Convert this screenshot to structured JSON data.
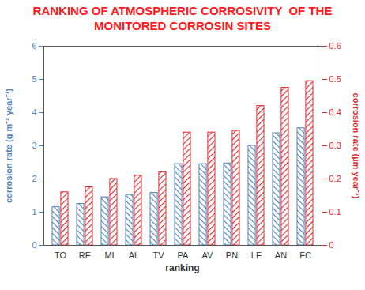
{
  "chart_data": {
    "type": "bar",
    "title": "RANKING OF ATMOSPHERIC CORROSIVITY  OF THE MONITORED CORROSIN SITES",
    "xlabel": "ranking",
    "ylabel": "corrosion rate (g m⁻² year⁻¹)",
    "y2label": "corrosion rate (µm year⁻¹)",
    "categories": [
      "TO",
      "RE",
      "MI",
      "AL",
      "TV",
      "PA",
      "AV",
      "PN",
      "LE",
      "AN",
      "FC"
    ],
    "series": [
      {
        "color": "#4f81bd",
        "values": [
          1.15,
          1.25,
          1.45,
          1.52,
          1.58,
          2.45,
          2.45,
          2.47,
          3.0,
          3.38,
          3.53
        ]
      },
      {
        "color": "#e8262d",
        "axis": "y2",
        "values": [
          0.16,
          0.175,
          0.2,
          0.21,
          0.22,
          0.34,
          0.34,
          0.345,
          0.42,
          0.475,
          0.495
        ]
      }
    ],
    "ylim": [
      0,
      6
    ],
    "yticks": [
      0,
      1,
      2,
      3,
      4,
      5,
      6
    ],
    "y2lim": [
      0,
      0.6
    ],
    "y2ticks": [
      0,
      0.1,
      0.2,
      0.3,
      0.4,
      0.5,
      0.6
    ],
    "grid": false
  }
}
